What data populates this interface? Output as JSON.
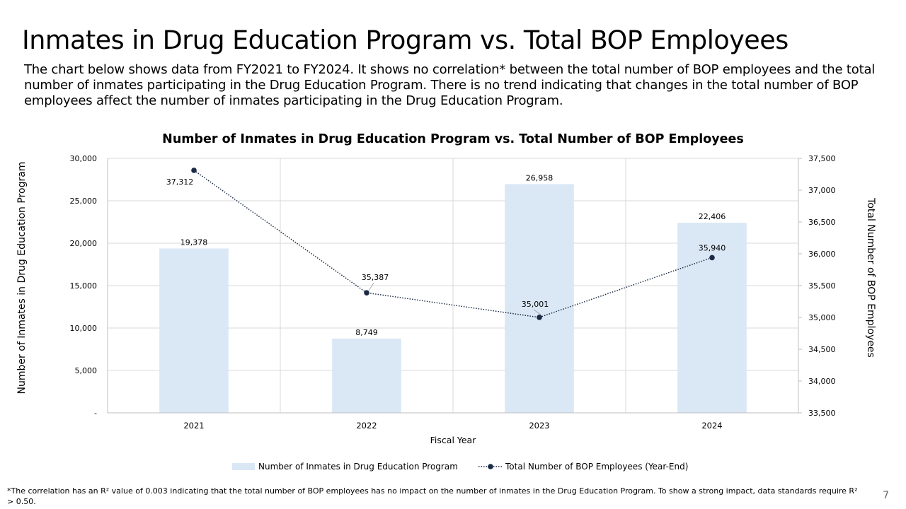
{
  "slide": {
    "title": "Inmates in Drug Education Program vs. Total BOP Employees",
    "intro": "The chart below shows data from FY2021 to FY2024. It shows no correlation* between the total number of BOP employees and the total number of inmates participating in the Drug Education Program. There is no trend indicating that changes in the total number of BOP employees affect the number of inmates participating in the Drug Education Program.",
    "footnote": "*The correlation has an R² value of 0.003 indicating that the total number of BOP employees has no impact on the number of inmates in the Drug Education Program. To show a strong impact, data standards require R² > 0.50.",
    "page_number": "7"
  },
  "chart_data": {
    "type": "bar+line",
    "title": "Number of Inmates in Drug Education Program vs. Total Number of BOP Employees",
    "xlabel": "Fiscal Year",
    "ylabel_left": "Number of Inmates in  Drug Education Program",
    "ylabel_right": "Total Number of BOP Employees",
    "categories": [
      "2021",
      "2022",
      "2023",
      "2024"
    ],
    "left_axis": {
      "min": 0,
      "max": 30000,
      "step": 5000,
      "tick_labels": [
        "-",
        "5,000",
        "10,000",
        "15,000",
        "20,000",
        "25,000",
        "30,000"
      ]
    },
    "right_axis": {
      "min": 33500,
      "max": 37500,
      "step": 500,
      "tick_labels": [
        "33,500",
        "34,000",
        "34,500",
        "35,000",
        "35,500",
        "36,000",
        "36,500",
        "37,000",
        "37,500"
      ]
    },
    "grid": true,
    "legend_position": "bottom",
    "series": [
      {
        "name": "Number of Inmates in Drug Education Program",
        "type": "bar",
        "axis": "left",
        "color": "#DAE7F5",
        "values": [
          19378,
          8749,
          26958,
          22406
        ],
        "labels": [
          "19,378",
          "8,749",
          "26,958",
          "22,406"
        ]
      },
      {
        "name": "Total Number of BOP Employees (Year-End)",
        "type": "line",
        "axis": "right",
        "color": "#1B2A44",
        "line_style": "dotted",
        "values": [
          37312,
          35387,
          35001,
          35940
        ],
        "labels": [
          "37,312",
          "35,387",
          "35,001",
          "35,940"
        ]
      }
    ]
  }
}
